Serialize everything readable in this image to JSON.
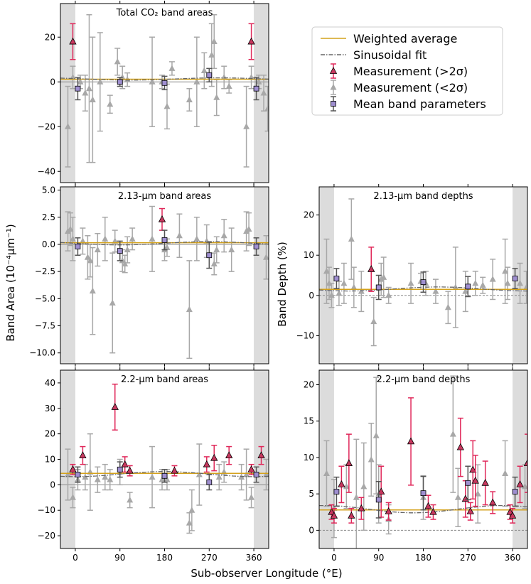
{
  "figure": {
    "xlabel": "Sub-observer Longitude (°E)",
    "ylabel_left": "Band Area (10⁻⁴μm⁻¹)",
    "ylabel_right": "Band Depth (%)"
  },
  "colors": {
    "weighted": "#d4a21c",
    "sinusoid": "#666666",
    "sig_fill": "#c8385f",
    "sig_err": "#e0285a",
    "insig": "#a8a8a8",
    "mean_fill": "#9f8fd0",
    "shade": "#dcdcdc"
  },
  "legend": {
    "items": [
      {
        "key": "weighted",
        "label": "Weighted average"
      },
      {
        "key": "sinusoid",
        "label": "Sinusoidal fit"
      },
      {
        "key": "sig",
        "label": "Measurement (>2σ)"
      },
      {
        "key": "insig",
        "label": "Measurement (<2σ)"
      },
      {
        "key": "mean",
        "label": "Mean band parameters"
      }
    ]
  },
  "chart_data": [
    {
      "id": "co2-area",
      "type": "scatter",
      "title": "Total CO₂ band areas",
      "xlim": [
        -30,
        390
      ],
      "ylim": [
        -45,
        35
      ],
      "xticks": [
        0,
        90,
        180,
        270,
        360
      ],
      "yticks": [
        -40,
        -20,
        0,
        20
      ],
      "ytick_labels": [
        "−40",
        "−20",
        "0",
        "20"
      ],
      "zero_line": 0,
      "weighted": 1.2,
      "sinusoid": {
        "mean": 1.3,
        "amp": 0.5,
        "phase": 200
      },
      "sig": [
        {
          "x": -5,
          "y": 18,
          "e": 8
        },
        {
          "x": 355,
          "y": 18,
          "e": 8
        }
      ],
      "insig": [
        {
          "x": -15,
          "y": -20,
          "e": 18
        },
        {
          "x": -5,
          "y": 2,
          "e": 5
        },
        {
          "x": 10,
          "y": 0,
          "e": 3
        },
        {
          "x": 20,
          "y": -5,
          "e": 8
        },
        {
          "x": 28,
          "y": -3,
          "e": 33
        },
        {
          "x": 35,
          "y": -8,
          "e": 28
        },
        {
          "x": 50,
          "y": 0,
          "e": 22
        },
        {
          "x": 70,
          "y": -10,
          "e": 4
        },
        {
          "x": 85,
          "y": 9,
          "e": 6
        },
        {
          "x": 95,
          "y": 2,
          "e": 5
        },
        {
          "x": 105,
          "y": 1,
          "e": 3
        },
        {
          "x": 155,
          "y": 0,
          "e": 20
        },
        {
          "x": 175,
          "y": 0,
          "e": 3
        },
        {
          "x": 185,
          "y": -11,
          "e": 10
        },
        {
          "x": 195,
          "y": 6,
          "e": 3
        },
        {
          "x": 230,
          "y": -8,
          "e": 5
        },
        {
          "x": 245,
          "y": 0,
          "e": 20
        },
        {
          "x": 260,
          "y": 5,
          "e": 8
        },
        {
          "x": 275,
          "y": 12,
          "e": 14
        },
        {
          "x": 280,
          "y": 18,
          "e": 12
        },
        {
          "x": 285,
          "y": -7,
          "e": 8
        },
        {
          "x": 300,
          "y": 2,
          "e": 5
        },
        {
          "x": 310,
          "y": -2,
          "e": 3
        },
        {
          "x": 345,
          "y": -20,
          "e": 18
        },
        {
          "x": 355,
          "y": 2,
          "e": 5
        },
        {
          "x": 370,
          "y": 0,
          "e": 3
        },
        {
          "x": 380,
          "y": -5,
          "e": 8
        },
        {
          "x": 388,
          "y": -12,
          "e": 10
        }
      ],
      "mean": [
        {
          "x": 5,
          "y": -3,
          "e": 5
        },
        {
          "x": 90,
          "y": 0,
          "e": 2
        },
        {
          "x": 180,
          "y": -0.5,
          "e": 3
        },
        {
          "x": 270,
          "y": 3,
          "e": 3
        },
        {
          "x": 365,
          "y": -3,
          "e": 5
        }
      ]
    },
    {
      "id": "213-area",
      "type": "scatter",
      "title": "2.13-μm band areas",
      "xlim": [
        -30,
        390
      ],
      "ylim": [
        -11,
        5.3
      ],
      "xticks": [
        0,
        90,
        180,
        270,
        360
      ],
      "yticks": [
        -10,
        -7.5,
        -5,
        -2.5,
        0,
        2.5,
        5
      ],
      "ytick_labels": [
        "−10.0",
        "−7.5",
        "−5.0",
        "−2.5",
        "0.0",
        "2.5",
        "5.0"
      ],
      "zero_line": 0,
      "weighted": 0.15,
      "sinusoid": {
        "mean": 0.1,
        "amp": 0.15,
        "phase": 180
      },
      "sig": [
        {
          "x": 175,
          "y": 2.3,
          "e": 1.0
        }
      ],
      "insig": [
        {
          "x": -15,
          "y": 1.2,
          "e": 1.8
        },
        {
          "x": -10,
          "y": 1.4,
          "e": 1.5
        },
        {
          "x": -5,
          "y": 0.5,
          "e": 2.0
        },
        {
          "x": 15,
          "y": 0.3,
          "e": 1.2
        },
        {
          "x": 25,
          "y": -1.2,
          "e": 2.0
        },
        {
          "x": 30,
          "y": -1.5,
          "e": 1.5
        },
        {
          "x": 35,
          "y": -4.3,
          "e": 4.0
        },
        {
          "x": 45,
          "y": -0.5,
          "e": 1.5
        },
        {
          "x": 60,
          "y": 0.5,
          "e": 2.0
        },
        {
          "x": 75,
          "y": -5.4,
          "e": 4.6
        },
        {
          "x": 80,
          "y": 0.3,
          "e": 1.0
        },
        {
          "x": 95,
          "y": -1.5,
          "e": 1.0
        },
        {
          "x": 100,
          "y": -1.8,
          "e": 0.8
        },
        {
          "x": 105,
          "y": -0.5,
          "e": 1.2
        },
        {
          "x": 115,
          "y": 0.5,
          "e": 1.0
        },
        {
          "x": 155,
          "y": 0.5,
          "e": 3.0
        },
        {
          "x": 180,
          "y": -0.5,
          "e": 1.0
        },
        {
          "x": 185,
          "y": -0.3,
          "e": 0.8
        },
        {
          "x": 210,
          "y": 0.8,
          "e": 2.0
        },
        {
          "x": 230,
          "y": -6.0,
          "e": 4.5
        },
        {
          "x": 245,
          "y": 0.5,
          "e": 2.0
        },
        {
          "x": 265,
          "y": 0.3,
          "e": 1.5
        },
        {
          "x": 280,
          "y": -1.8,
          "e": 1.0
        },
        {
          "x": 285,
          "y": -0.5,
          "e": 1.2
        },
        {
          "x": 300,
          "y": 0.8,
          "e": 1.5
        },
        {
          "x": 315,
          "y": -0.5,
          "e": 2.0
        },
        {
          "x": 345,
          "y": 1.2,
          "e": 1.8
        },
        {
          "x": 350,
          "y": 1.4,
          "e": 1.5
        },
        {
          "x": 385,
          "y": -1.2,
          "e": 2.0
        }
      ],
      "mean": [
        {
          "x": 5,
          "y": -0.2,
          "e": 0.8
        },
        {
          "x": 90,
          "y": -0.6,
          "e": 0.9
        },
        {
          "x": 180,
          "y": 0.4,
          "e": 0.9
        },
        {
          "x": 270,
          "y": -1.0,
          "e": 1.2
        },
        {
          "x": 365,
          "y": -0.2,
          "e": 0.8
        }
      ]
    },
    {
      "id": "213-depth",
      "type": "scatter",
      "title": "2.13-μm band depths",
      "xlim": [
        -30,
        390
      ],
      "ylim": [
        -17,
        27
      ],
      "xticks": [
        0,
        90,
        180,
        270,
        360
      ],
      "yticks": [
        -10,
        0,
        10,
        20
      ],
      "ytick_labels": [
        "−10",
        "0",
        "10",
        "20"
      ],
      "zero_line": 0,
      "weighted": 1.5,
      "sinusoid": {
        "mean": 1.6,
        "amp": 0.5,
        "phase": 120
      },
      "sig": [
        {
          "x": 75,
          "y": 6.5,
          "e": 5.5
        }
      ],
      "insig": [
        {
          "x": -15,
          "y": 6,
          "e": 8
        },
        {
          "x": -10,
          "y": 3,
          "e": 4
        },
        {
          "x": -5,
          "y": 0,
          "e": 3
        },
        {
          "x": 10,
          "y": 0.5,
          "e": 3
        },
        {
          "x": 20,
          "y": 3,
          "e": 5
        },
        {
          "x": 35,
          "y": 14,
          "e": 10
        },
        {
          "x": 40,
          "y": 2,
          "e": 5
        },
        {
          "x": 55,
          "y": 1,
          "e": 5
        },
        {
          "x": 80,
          "y": -6.5,
          "e": 6
        },
        {
          "x": 95,
          "y": 4,
          "e": 4
        },
        {
          "x": 100,
          "y": 4.5,
          "e": 5
        },
        {
          "x": 110,
          "y": 0,
          "e": 2
        },
        {
          "x": 155,
          "y": 3,
          "e": 5
        },
        {
          "x": 175,
          "y": 3.5,
          "e": 2
        },
        {
          "x": 185,
          "y": 3,
          "e": 3
        },
        {
          "x": 205,
          "y": 1,
          "e": 3
        },
        {
          "x": 230,
          "y": -3,
          "e": 4
        },
        {
          "x": 245,
          "y": 2,
          "e": 10
        },
        {
          "x": 265,
          "y": 1,
          "e": 5
        },
        {
          "x": 285,
          "y": 3,
          "e": 3
        },
        {
          "x": 300,
          "y": 2.5,
          "e": 2
        },
        {
          "x": 320,
          "y": 4,
          "e": 5
        },
        {
          "x": 345,
          "y": 6,
          "e": 8
        },
        {
          "x": 350,
          "y": 3,
          "e": 4
        },
        {
          "x": 375,
          "y": 3,
          "e": 5
        },
        {
          "x": 388,
          "y": 2,
          "e": 4
        }
      ],
      "mean": [
        {
          "x": 5,
          "y": 4.2,
          "e": 2.5
        },
        {
          "x": 90,
          "y": 2.0,
          "e": 3.0
        },
        {
          "x": 180,
          "y": 3.3,
          "e": 2.5
        },
        {
          "x": 270,
          "y": 2.2,
          "e": 2.5
        },
        {
          "x": 365,
          "y": 4.2,
          "e": 2.5
        }
      ]
    },
    {
      "id": "22-area",
      "type": "scatter",
      "title": "2.2-μm band areas",
      "xlim": [
        -30,
        390
      ],
      "ylim": [
        -25,
        45
      ],
      "xticks": [
        0,
        90,
        180,
        270,
        360
      ],
      "yticks": [
        -20,
        -10,
        0,
        10,
        20,
        30,
        40
      ],
      "ytick_labels": [
        "−20",
        "−10",
        "0",
        "10",
        "20",
        "30",
        "40"
      ],
      "zero_line": 0,
      "weighted": 4.5,
      "sinusoid": {
        "mean": 4.2,
        "amp": 1.0,
        "phase": 90
      },
      "sig": [
        {
          "x": -5,
          "y": 6,
          "e": 2
        },
        {
          "x": 15,
          "y": 11.5,
          "e": 3.5
        },
        {
          "x": 80,
          "y": 30.5,
          "e": 9
        },
        {
          "x": 100,
          "y": 8,
          "e": 3
        },
        {
          "x": 110,
          "y": 5.5,
          "e": 2
        },
        {
          "x": 200,
          "y": 5.5,
          "e": 2
        },
        {
          "x": 265,
          "y": 8,
          "e": 3
        },
        {
          "x": 280,
          "y": 10.5,
          "e": 5
        },
        {
          "x": 310,
          "y": 11.5,
          "e": 3.5
        },
        {
          "x": 355,
          "y": 6,
          "e": 2
        },
        {
          "x": 375,
          "y": 11.5,
          "e": 3.5
        }
      ],
      "insig": [
        {
          "x": -15,
          "y": 4,
          "e": 10
        },
        {
          "x": -5,
          "y": -5,
          "e": 4
        },
        {
          "x": 5,
          "y": 2,
          "e": 4
        },
        {
          "x": 20,
          "y": 3,
          "e": 5
        },
        {
          "x": 30,
          "y": 5,
          "e": 15
        },
        {
          "x": 45,
          "y": 2,
          "e": 5
        },
        {
          "x": 60,
          "y": 3,
          "e": 5
        },
        {
          "x": 70,
          "y": 2,
          "e": 4
        },
        {
          "x": 90,
          "y": 5,
          "e": 5
        },
        {
          "x": 110,
          "y": -6,
          "e": 3
        },
        {
          "x": 155,
          "y": 3,
          "e": 12
        },
        {
          "x": 175,
          "y": 2,
          "e": 4
        },
        {
          "x": 185,
          "y": 2,
          "e": 4
        },
        {
          "x": 230,
          "y": -15,
          "e": 4
        },
        {
          "x": 235,
          "y": -10,
          "e": 8
        },
        {
          "x": 250,
          "y": 4,
          "e": 12
        },
        {
          "x": 290,
          "y": 3,
          "e": 5
        },
        {
          "x": 300,
          "y": 5,
          "e": 4
        },
        {
          "x": 335,
          "y": 3,
          "e": 5
        },
        {
          "x": 345,
          "y": 4,
          "e": 10
        },
        {
          "x": 355,
          "y": -5,
          "e": 4
        },
        {
          "x": 385,
          "y": 4,
          "e": 6
        }
      ],
      "mean": [
        {
          "x": 5,
          "y": 4,
          "e": 3
        },
        {
          "x": 90,
          "y": 6,
          "e": 3
        },
        {
          "x": 180,
          "y": 3.5,
          "e": 2.5
        },
        {
          "x": 270,
          "y": 1,
          "e": 3
        },
        {
          "x": 365,
          "y": 4,
          "e": 3
        }
      ]
    },
    {
      "id": "22-depth",
      "type": "scatter",
      "title": "2.2-μm band depths",
      "xlim": [
        -30,
        390
      ],
      "ylim": [
        -2.5,
        22
      ],
      "xticks": [
        0,
        90,
        180,
        270,
        360
      ],
      "yticks": [
        0,
        5,
        10,
        15,
        20
      ],
      "ytick_labels": [
        "0",
        "5",
        "10",
        "15",
        "20"
      ],
      "zero_line": 0,
      "weighted": 2.8,
      "sinusoid": {
        "mean": 2.9,
        "amp": 0.5,
        "phase": 250
      },
      "sig": [
        {
          "x": -5,
          "y": 2.5,
          "e": 1
        },
        {
          "x": 0,
          "y": 2.0,
          "e": 1
        },
        {
          "x": 15,
          "y": 6.3,
          "e": 2.5
        },
        {
          "x": 30,
          "y": 9.2,
          "e": 4
        },
        {
          "x": 35,
          "y": 2.0,
          "e": 1
        },
        {
          "x": 55,
          "y": 3.0,
          "e": 1.5
        },
        {
          "x": 95,
          "y": 5.3,
          "e": 3.5
        },
        {
          "x": 110,
          "y": 2.6,
          "e": 1.2
        },
        {
          "x": 155,
          "y": 12.2,
          "e": 6
        },
        {
          "x": 190,
          "y": 3.3,
          "e": 1.5
        },
        {
          "x": 200,
          "y": 2.5,
          "e": 1
        },
        {
          "x": 255,
          "y": 11.4,
          "e": 4
        },
        {
          "x": 265,
          "y": 4.3,
          "e": 2.5
        },
        {
          "x": 275,
          "y": 2.6,
          "e": 1.2
        },
        {
          "x": 280,
          "y": 8.3,
          "e": 4
        },
        {
          "x": 285,
          "y": 6.8,
          "e": 3.5
        },
        {
          "x": 305,
          "y": 6.5,
          "e": 3
        },
        {
          "x": 320,
          "y": 3.8,
          "e": 1.5
        },
        {
          "x": 355,
          "y": 2.5,
          "e": 1
        },
        {
          "x": 360,
          "y": 2.0,
          "e": 1
        },
        {
          "x": 375,
          "y": 6.3,
          "e": 2.5
        },
        {
          "x": 390,
          "y": 9.2,
          "e": 4
        }
      ],
      "insig": [
        {
          "x": -15,
          "y": 7.8,
          "e": 4.5
        },
        {
          "x": 0,
          "y": 3,
          "e": 4
        },
        {
          "x": 25,
          "y": 6,
          "e": 3
        },
        {
          "x": 45,
          "y": 4.5,
          "e": 8
        },
        {
          "x": 60,
          "y": 6,
          "e": 6
        },
        {
          "x": 75,
          "y": 9.7,
          "e": 5
        },
        {
          "x": 85,
          "y": 13,
          "e": 8
        },
        {
          "x": 90,
          "y": 5,
          "e": 4
        },
        {
          "x": 110,
          "y": 1.5,
          "e": 2
        },
        {
          "x": 180,
          "y": 4.5,
          "e": 3
        },
        {
          "x": 240,
          "y": 13.2,
          "e": 8
        },
        {
          "x": 250,
          "y": 4.5,
          "e": 4
        },
        {
          "x": 290,
          "y": 5,
          "e": 4
        },
        {
          "x": 345,
          "y": 7.8,
          "e": 4.5
        },
        {
          "x": 385,
          "y": 6,
          "e": 3
        }
      ],
      "mean": [
        {
          "x": 5,
          "y": 5.3,
          "e": 2
        },
        {
          "x": 90,
          "y": 4.2,
          "e": 2.5
        },
        {
          "x": 180,
          "y": 5.1,
          "e": 2.3
        },
        {
          "x": 270,
          "y": 6.5,
          "e": 2.3
        },
        {
          "x": 365,
          "y": 5.3,
          "e": 2
        }
      ]
    }
  ]
}
